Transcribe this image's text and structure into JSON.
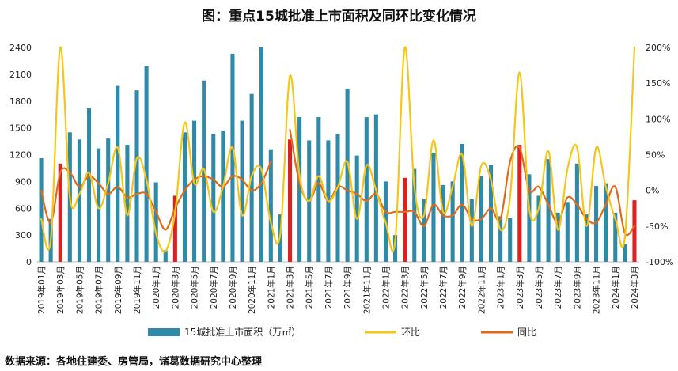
{
  "page": {
    "title": "图：重点15城批准上市面积及同环比变化情况",
    "source": "数据来源：各地住建委、房管局，诸葛数据研究中心整理"
  },
  "chart_data": {
    "type": "bar",
    "title": "图：重点15城批准上市面积及同环比变化情况",
    "categories": [
      "2019年01月",
      "2019年02月",
      "2019年03月",
      "2019年04月",
      "2019年05月",
      "2019年06月",
      "2019年07月",
      "2019年08月",
      "2019年09月",
      "2019年10月",
      "2019年11月",
      "2019年12月",
      "2020年1月",
      "2020年2月",
      "2020年3月",
      "2020年4月",
      "2020年5月",
      "2020年6月",
      "2020年7月",
      "2020年8月",
      "2020年9月",
      "2020年10月",
      "2020年11月",
      "2020年12月",
      "2021年1月",
      "2021年2月",
      "2021年3月",
      "2021年4月",
      "2021年5月",
      "2021年6月",
      "2021年7月",
      "2021年8月",
      "2021年9月",
      "2021年10月",
      "2021年11月",
      "2021年12月",
      "2022年1月",
      "2022年2月",
      "2022年3月",
      "2022年4月",
      "2022年5月",
      "2022年6月",
      "2022年7月",
      "2022年8月",
      "2022年9月",
      "2022年10月",
      "2022年11月",
      "2022年12月",
      "2023年1月",
      "2023年2月",
      "2023年3月",
      "2023年4月",
      "2023年5月",
      "2023年6月",
      "2023年7月",
      "2023年8月",
      "2023年9月",
      "2023年10月",
      "2023年11月",
      "2023年12月",
      "2024年1月",
      "2024年2月",
      "2024年3月"
    ],
    "x_tick_labels": [
      "2019年01月",
      "2019年03月",
      "2019年05月",
      "2019年07月",
      "2019年09月",
      "2019年11月",
      "2020年1月",
      "2020年3月",
      "2020年5月",
      "2020年7月",
      "2020年9月",
      "2020年11月",
      "2021年1月",
      "2021年3月",
      "2021年5月",
      "2021年7月",
      "2021年9月",
      "2021年11月",
      "2022年1月",
      "2022年3月",
      "2022年5月",
      "2022年7月",
      "2022年9月",
      "2022年11月",
      "2023年1月",
      "2023年3月",
      "2023年5月",
      "2023年7月",
      "2023年9月",
      "2023年11月",
      "2024年1月",
      "2024年3月"
    ],
    "y_left": {
      "min": 0,
      "max": 2400,
      "ticks": [
        "0",
        "300",
        "600",
        "900",
        "1200",
        "1500",
        "1800",
        "2100",
        "2400"
      ]
    },
    "y_right": {
      "min": -100,
      "max": 200,
      "ticks": [
        "-100%",
        "-50%",
        "0%",
        "50%",
        "100%",
        "150%",
        "200%"
      ]
    },
    "highlight_indices": [
      2,
      14,
      26,
      38,
      50,
      62
    ],
    "series": [
      {
        "name": "15城批准上市面积（万㎡）",
        "type": "bar",
        "axis": "left",
        "color": "#2e8aa6",
        "highlight_color": "#e02020",
        "values": [
          1160,
          480,
          1100,
          1450,
          1370,
          1720,
          1270,
          1380,
          1970,
          1310,
          1920,
          2190,
          890,
          130,
          740,
          1450,
          1580,
          2030,
          1430,
          1470,
          2330,
          1580,
          1880,
          2400,
          1260,
          530,
          1370,
          1620,
          1360,
          1620,
          1360,
          1430,
          1940,
          1190,
          1620,
          1650,
          900,
          300,
          940,
          1040,
          700,
          1220,
          860,
          900,
          1320,
          700,
          960,
          1090,
          510,
          490,
          1310,
          980,
          740,
          1150,
          550,
          670,
          1100,
          530,
          850,
          880,
          550,
          200,
          690
        ]
      },
      {
        "name": "环比",
        "type": "line",
        "axis": "right",
        "color": "#f5c518",
        "values": [
          -40,
          -70,
          200,
          -10,
          -5,
          25,
          -25,
          10,
          60,
          -35,
          45,
          15,
          -60,
          -85,
          -30,
          95,
          10,
          30,
          -30,
          5,
          60,
          -35,
          20,
          30,
          -45,
          -60,
          160,
          20,
          -15,
          20,
          -15,
          5,
          40,
          -40,
          35,
          0,
          -45,
          -70,
          200,
          5,
          -35,
          70,
          -30,
          5,
          50,
          -50,
          35,
          15,
          -55,
          -10,
          165,
          -25,
          -25,
          55,
          -55,
          30,
          60,
          -50,
          60,
          5,
          -40,
          -65,
          200
        ]
      },
      {
        "name": "同比",
        "type": "line",
        "axis": "right",
        "color": "#e06a1b",
        "values": [
          0,
          -45,
          25,
          25,
          5,
          20,
          10,
          -5,
          5,
          -10,
          -5,
          -5,
          -30,
          -55,
          -25,
          0,
          15,
          20,
          15,
          5,
          20,
          15,
          0,
          10,
          40,
          null,
          85,
          10,
          -15,
          10,
          -15,
          5,
          0,
          -5,
          -15,
          -5,
          -30,
          -30,
          -30,
          -30,
          -50,
          -20,
          -35,
          -35,
          -20,
          -40,
          -40,
          -25,
          -40,
          40,
          60,
          0,
          5,
          -20,
          -45,
          -10,
          -20,
          -40,
          -45,
          -20,
          5,
          -60,
          -50
        ]
      }
    ],
    "legend": {
      "position": "bottom"
    },
    "grid": false
  }
}
